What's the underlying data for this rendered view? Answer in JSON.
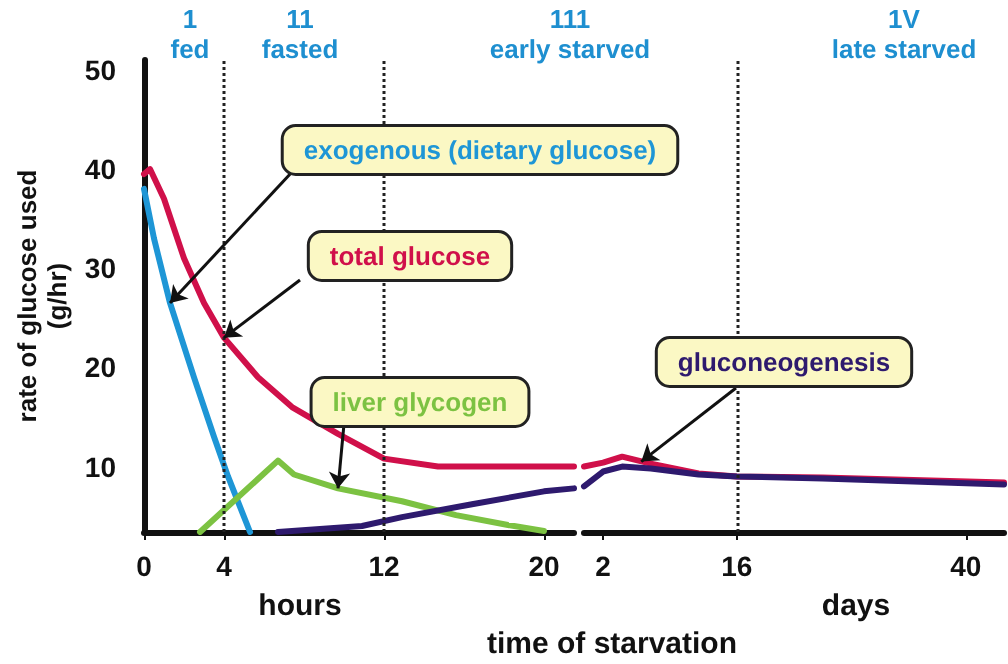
{
  "chart_data": [
    {
      "type": "line",
      "xlabel": "time of starvation",
      "ylabel": "rate of glucose used\n(g/hr)",
      "xlim": [
        0,
        21.5
      ],
      "ylim": [
        3.4,
        51
      ],
      "xticks": [
        0,
        4,
        12,
        20
      ],
      "yticks": [
        10,
        20,
        30,
        40,
        50
      ],
      "marker": "none",
      "series": [
        {
          "color": "#d0104a",
          "x": [
            0,
            0.3,
            1,
            2,
            3,
            4,
            5.7,
            7.4,
            9.7,
            12,
            14.7,
            18,
            21.5
          ],
          "values": [
            39.5,
            40,
            37,
            31,
            26.5,
            23,
            19,
            16,
            13.3,
            10.8,
            10,
            10,
            10
          ]
        },
        {
          "color": "#1e96d6",
          "x": [
            0,
            0.5,
            1.3,
            2.5,
            3.5,
            4.2,
            5.3
          ],
          "values": [
            38,
            33,
            26.5,
            19,
            13,
            9,
            3.4
          ]
        },
        {
          "color": "#7cc242",
          "x": [
            2.8,
            6.7,
            7.5,
            9.7,
            12.9,
            15.6,
            18.2,
            20
          ],
          "values": [
            3.4,
            10.6,
            9.2,
            7.8,
            6.5,
            5.1,
            4.1,
            3.5
          ]
        },
        {
          "color": "#2e1a6e",
          "x": [
            6.7,
            10.9,
            12.9,
            16.4,
            20,
            21.5
          ],
          "values": [
            3.4,
            4,
            4.9,
            6.2,
            7.5,
            7.8
          ]
        }
      ],
      "ref_lines": [
        {
          "axis": "x",
          "value": 4,
          "line_style": "dotted"
        },
        {
          "axis": "x",
          "value": 12,
          "line_style": "dotted"
        }
      ],
      "annotations": [
        {
          "text": "exogenous (dietary glucose)",
          "x": 1.3,
          "y": 26.5
        },
        {
          "text": "total glucose",
          "x": 4,
          "y": 23
        },
        {
          "text": "liver glycogen",
          "x": 9.7,
          "y": 7.8
        },
        "1\nfed",
        "11\nfasted",
        "111\nearly starved",
        "hours"
      ]
    },
    {
      "type": "line",
      "xlim": [
        0,
        44
      ],
      "ylim": [
        3.4,
        51
      ],
      "xticks": [
        2,
        16,
        40
      ],
      "tick_labels": "x",
      "marker": "none",
      "series": [
        {
          "color": "#d0104a",
          "x": [
            0,
            2,
            4,
            7,
            12,
            16,
            25,
            44
          ],
          "values": [
            10,
            10.4,
            11,
            10.3,
            9.3,
            9,
            8.9,
            8.4
          ]
        },
        {
          "color": "#2e1a6e",
          "x": [
            0,
            2,
            4,
            7,
            12,
            16,
            25,
            44
          ],
          "values": [
            8,
            9.5,
            10,
            9.8,
            9.2,
            9,
            8.8,
            8.2
          ]
        }
      ],
      "ref_lines": [
        {
          "axis": "x",
          "value": 16,
          "line_style": "dotted"
        }
      ],
      "annotations": [
        {
          "text": "gluconeogenesis",
          "x": 6,
          "y": 10.5
        },
        "1V\nlate starved",
        "days"
      ]
    }
  ]
}
